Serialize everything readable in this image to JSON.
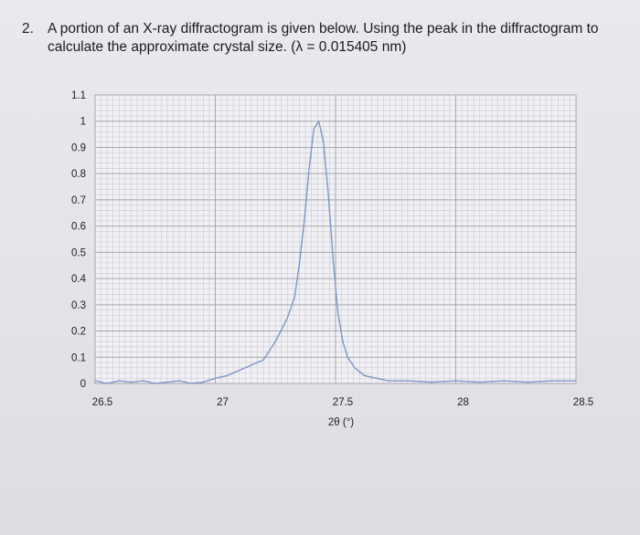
{
  "question": {
    "number": "2.",
    "text": "A portion of an X-ray diffractogram is given below. Using the peak in the diffractogram to calculate the approximate crystal size. (λ = 0.015405 nm)"
  },
  "chart_data": {
    "type": "line",
    "xlabel": "2θ (°)",
    "xlim": [
      26.5,
      28.5
    ],
    "ylim": [
      0,
      1.1
    ],
    "x_ticks": [
      "26.5",
      "27",
      "27.5",
      "28",
      "28.5"
    ],
    "x_tick_values": [
      26.5,
      27.0,
      27.5,
      28.0,
      28.5
    ],
    "y_ticks": [
      "0",
      "0.1",
      "0.2",
      "0.3",
      "0.4",
      "0.5",
      "0.6",
      "0.7",
      "0.8",
      "0.9",
      "1",
      "1.1"
    ],
    "y_tick_values": [
      0,
      0.1,
      0.2,
      0.3,
      0.4,
      0.5,
      0.6,
      0.7,
      0.8,
      0.9,
      1.0,
      1.1
    ],
    "grid": true,
    "line_color": "#7d96c4",
    "series": [
      {
        "x": [
          26.5,
          26.55,
          26.6,
          26.65,
          26.7,
          26.75,
          26.8,
          26.85,
          26.9,
          26.95,
          27.0,
          27.05,
          27.1,
          27.15,
          27.2,
          27.25,
          27.3,
          27.33,
          27.35,
          27.37,
          27.39,
          27.41,
          27.43,
          27.45,
          27.47,
          27.49,
          27.51,
          27.53,
          27.55,
          27.58,
          27.62,
          27.67,
          27.72,
          27.8,
          27.9,
          28.0,
          28.1,
          28.2,
          28.3,
          28.4,
          28.5
        ],
        "y": [
          0.01,
          0.0,
          0.01,
          0.005,
          0.01,
          0.0,
          0.005,
          0.01,
          0.0,
          0.005,
          0.02,
          0.03,
          0.05,
          0.07,
          0.09,
          0.16,
          0.25,
          0.33,
          0.46,
          0.62,
          0.82,
          0.97,
          1.0,
          0.92,
          0.72,
          0.47,
          0.27,
          0.16,
          0.1,
          0.06,
          0.03,
          0.02,
          0.01,
          0.01,
          0.005,
          0.01,
          0.005,
          0.01,
          0.005,
          0.01,
          0.01
        ]
      }
    ]
  }
}
